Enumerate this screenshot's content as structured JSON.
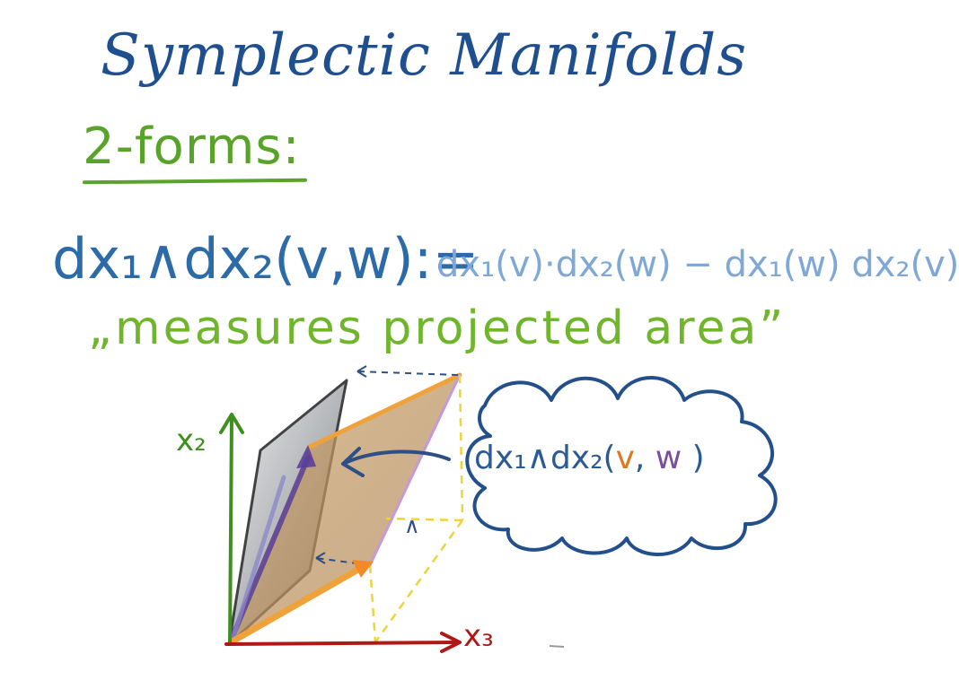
{
  "title": "Symplectic Manifolds",
  "subtitle": "2-forms:",
  "formula_lhs": "dx₁∧dx₂(v,w):=",
  "formula_rhs": "dx₁(v)·dx₂(w) − dx₁(w) dx₂(v)",
  "quote": "„measures projected area”",
  "diagram": {
    "axis_x2_label": "x₂",
    "axis_x3_label": "x₃",
    "mid_label": "∧",
    "cloud": {
      "prefix": "dx₁∧dx₂(",
      "v": "v",
      "comma": ", ",
      "w": "w",
      "suffix": " )"
    }
  },
  "colors": {
    "title": "#1f4f8f",
    "green": "#5aa32a",
    "formula": "#2c6aa8",
    "formula_light": "#7fa8d6",
    "axis_x2": "#3e8f1e",
    "axis_x3": "#b01818",
    "vector_v": "#f0a23a",
    "vector_w": "#7a4f9e",
    "cloud": "#234f8a"
  }
}
